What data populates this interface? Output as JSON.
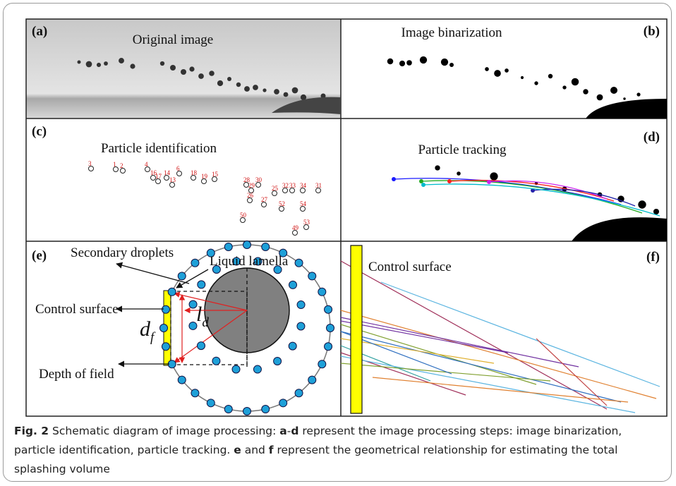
{
  "panels": [
    {
      "label": "(a)",
      "title": "Original image"
    },
    {
      "label": "(b)",
      "title": "Image binarization"
    },
    {
      "label": "(c)",
      "title": "Particle identification"
    },
    {
      "label": "(d)",
      "title": "Particle tracking"
    },
    {
      "label": "(e)"
    },
    {
      "label": "(f)",
      "title": "Control surface"
    }
  ],
  "diagram_e": {
    "secondary": "Secondary droplets",
    "lamella": "Liquid lamella",
    "control": "Control surface",
    "depth": "Depth of field",
    "df": {
      "main": "d",
      "sub": "f"
    },
    "ld": {
      "main": "l",
      "sub": "d"
    }
  },
  "particle_ids": [
    "3",
    "1",
    "2",
    "4",
    "16",
    "17",
    "14",
    "6",
    "13",
    "18",
    "19",
    "15",
    "28",
    "29",
    "30",
    "32",
    "33",
    "34",
    "31",
    "25",
    "26",
    "27",
    "50",
    "52",
    "54",
    "53",
    "49"
  ],
  "caption": [
    {
      "text": "Fig. 2",
      "bold": true
    },
    {
      "text": " Schematic diagram of image processing: "
    },
    {
      "text": "a",
      "bold": true
    },
    {
      "text": "-"
    },
    {
      "text": "d",
      "bold": true
    },
    {
      "text": " represent the image processing steps: image binarization, particle identification, particle tracking. "
    },
    {
      "text": "e",
      "bold": true
    },
    {
      "text": " and "
    },
    {
      "text": "f",
      "bold": true
    },
    {
      "text": " represent the geometrical relationship for estimating the total splashing volume"
    }
  ]
}
